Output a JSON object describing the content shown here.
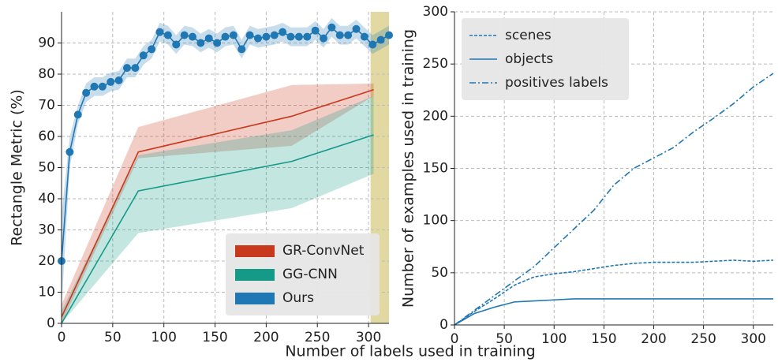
{
  "chart_data": [
    {
      "type": "line",
      "xlabel": "Number of labels used in training",
      "ylabel": "Rectangle Metric (%)",
      "xlim": [
        0,
        320
      ],
      "ylim": [
        0,
        100
      ],
      "xticks": [
        0,
        50,
        100,
        150,
        200,
        250,
        300
      ],
      "yticks": [
        0,
        10,
        20,
        30,
        40,
        50,
        60,
        70,
        80,
        90
      ],
      "grid": true,
      "legend": "lower right",
      "legend_style": "patch",
      "highlight_xrange": [
        302,
        320
      ],
      "highlight_color": "#d9cf8a",
      "series": [
        {
          "name": "GR-ConvNet",
          "color": "#c8381c",
          "x": [
            0,
            75,
            225,
            305
          ],
          "values": [
            2,
            55,
            66.5,
            75
          ],
          "lower": [
            0,
            53,
            57,
            73
          ],
          "upper": [
            6,
            63,
            76.5,
            77
          ]
        },
        {
          "name": "GG-CNN",
          "color": "#159a88",
          "x": [
            0,
            75,
            225,
            305
          ],
          "values": [
            0,
            42.5,
            52,
            60.5
          ],
          "lower": [
            0,
            29,
            37,
            48
          ],
          "upper": [
            4,
            54,
            62,
            73
          ]
        },
        {
          "name": "Ours",
          "color": "#1f77b4",
          "markers": true,
          "x": [
            0,
            8,
            16,
            24,
            32,
            40,
            48,
            56,
            64,
            72,
            80,
            88,
            96,
            104,
            112,
            120,
            128,
            136,
            144,
            152,
            160,
            168,
            176,
            184,
            192,
            200,
            208,
            216,
            224,
            232,
            240,
            248,
            256,
            264,
            272,
            280,
            288,
            296,
            304,
            312,
            320
          ],
          "values": [
            20,
            55,
            67,
            74,
            76,
            76,
            77.5,
            78,
            82,
            82,
            86,
            88,
            93.5,
            92.5,
            89.5,
            92.5,
            92,
            90,
            91.5,
            90,
            92,
            92.5,
            88,
            92.5,
            91.5,
            92,
            92.5,
            93.5,
            92,
            92,
            92,
            94,
            91.5,
            95,
            92.5,
            92.5,
            94.5,
            92,
            89.5,
            91,
            92.5
          ],
          "errors": [
            15,
            5,
            3,
            3,
            3,
            3,
            3,
            3,
            3,
            3,
            3,
            3,
            3,
            3,
            3,
            3,
            3,
            3,
            3,
            3,
            3,
            3,
            3,
            3,
            3,
            3,
            3,
            3,
            3,
            3,
            3,
            3,
            3,
            3,
            3,
            3,
            3,
            3,
            3,
            3,
            3
          ]
        }
      ]
    },
    {
      "type": "line",
      "ylabel": "Number of examples used in training",
      "xlim": [
        0,
        320
      ],
      "ylim": [
        0,
        300
      ],
      "xticks": [
        0,
        50,
        100,
        150,
        200,
        250,
        300
      ],
      "yticks": [
        0,
        50,
        100,
        150,
        200,
        250,
        300
      ],
      "grid": true,
      "legend": "upper left",
      "legend_style": "line",
      "x": [
        0,
        20,
        40,
        60,
        80,
        100,
        120,
        140,
        160,
        180,
        200,
        220,
        240,
        260,
        280,
        300,
        320
      ],
      "series": [
        {
          "name": "scenes",
          "color": "#1f77b4",
          "dash": "4,2",
          "values": [
            0,
            13,
            25,
            38,
            46,
            49,
            51,
            54,
            57,
            59,
            60,
            60,
            60,
            61,
            62,
            61,
            62
          ]
        },
        {
          "name": "objects",
          "color": "#1f77b4",
          "dash": "",
          "values": [
            0,
            11,
            17,
            22,
            23,
            24,
            25,
            25,
            25,
            25,
            25,
            25,
            25,
            25,
            25,
            25,
            25
          ]
        },
        {
          "name": "positives labels",
          "color": "#1f77b4",
          "dash": "8,3,2,3",
          "values": [
            0,
            14,
            28,
            42,
            56,
            74,
            92,
            110,
            134,
            150,
            160,
            170,
            185,
            198,
            212,
            228,
            241
          ]
        }
      ]
    }
  ]
}
